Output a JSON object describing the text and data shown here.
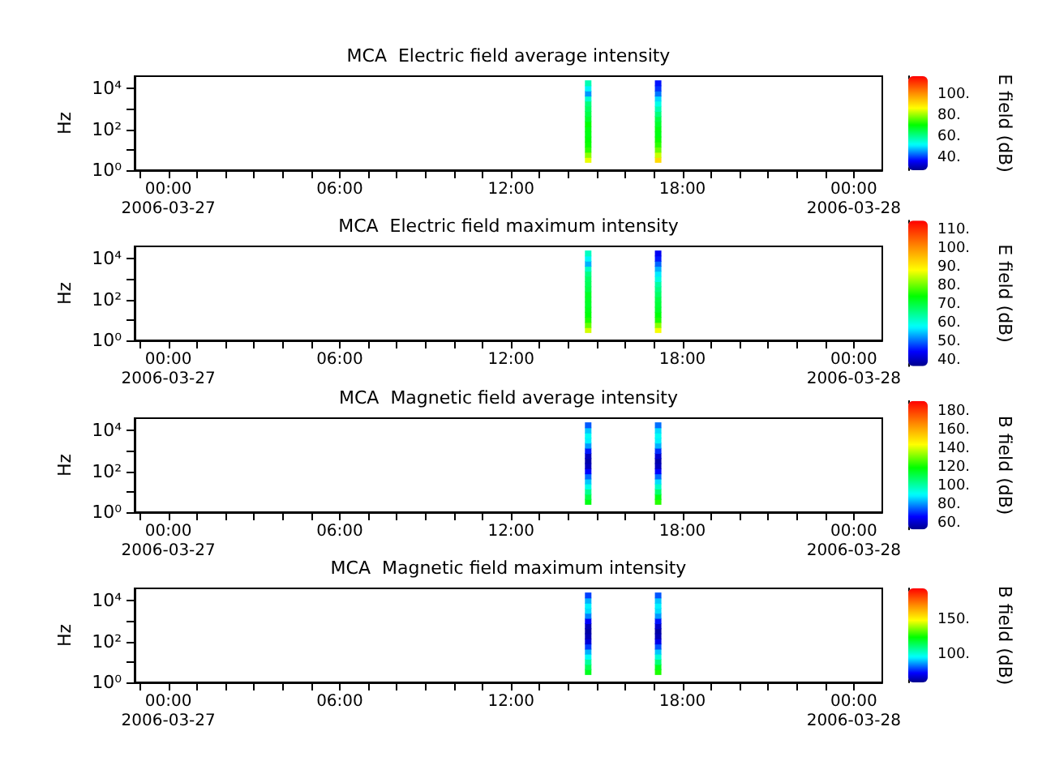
{
  "chart_data": [
    {
      "type": "scatter",
      "title": "MCA  Electric field average intensity",
      "ylabel": "Hz",
      "clabel": "E field (dB)",
      "marker": "square",
      "log": "y",
      "x": [
        "2006-03-27T14:42",
        "2006-03-27T14:42",
        "2006-03-27T14:42",
        "2006-03-27T14:42",
        "2006-03-27T14:42",
        "2006-03-27T14:42",
        "2006-03-27T14:42",
        "2006-03-27T14:42",
        "2006-03-27T14:42",
        "2006-03-27T14:42",
        "2006-03-27T14:42",
        "2006-03-27T14:42",
        "2006-03-27T14:42",
        "2006-03-27T14:42",
        "2006-03-27T14:42",
        "2006-03-27T14:42",
        "2006-03-27T17:09",
        "2006-03-27T17:09",
        "2006-03-27T17:09",
        "2006-03-27T17:09",
        "2006-03-27T17:09",
        "2006-03-27T17:09",
        "2006-03-27T17:09",
        "2006-03-27T17:09",
        "2006-03-27T17:09",
        "2006-03-27T17:09",
        "2006-03-27T17:09",
        "2006-03-27T17:09",
        "2006-03-27T17:09",
        "2006-03-27T17:09",
        "2006-03-27T17:09",
        "2006-03-27T17:09"
      ],
      "values": [
        3.2,
        5.6,
        10,
        18,
        32,
        56,
        100,
        180,
        320,
        560,
        1000,
        1800,
        3200,
        5600,
        10000,
        18000,
        3.2,
        5.6,
        10,
        18,
        32,
        56,
        100,
        180,
        320,
        560,
        1000,
        1800,
        3200,
        5600,
        10000,
        18000
      ],
      "cvalues": [
        86,
        80,
        74,
        72,
        71,
        70,
        70,
        71,
        68,
        66,
        64,
        62,
        56,
        46,
        52,
        58,
        92,
        84,
        78,
        74,
        72,
        70,
        70,
        68,
        66,
        62,
        58,
        54,
        50,
        44,
        40,
        38
      ],
      "xlim": [
        "2006-03-26T22:49",
        "2006-03-28T01:00"
      ],
      "xticks": [
        {
          "value": "2006-03-26T23:00",
          "label": null
        },
        {
          "value": "2006-03-27T00:00",
          "label": "00:00\n2006-03-27"
        },
        {
          "value": "2006-03-27T01:00",
          "label": null
        },
        {
          "value": "2006-03-27T02:00",
          "label": null
        },
        {
          "value": "2006-03-27T03:00",
          "label": null
        },
        {
          "value": "2006-03-27T04:00",
          "label": null
        },
        {
          "value": "2006-03-27T05:00",
          "label": null
        },
        {
          "value": "2006-03-27T06:00",
          "label": "06:00"
        },
        {
          "value": "2006-03-27T07:00",
          "label": null
        },
        {
          "value": "2006-03-27T08:00",
          "label": null
        },
        {
          "value": "2006-03-27T09:00",
          "label": null
        },
        {
          "value": "2006-03-27T10:00",
          "label": null
        },
        {
          "value": "2006-03-27T11:00",
          "label": null
        },
        {
          "value": "2006-03-27T12:00",
          "label": "12:00"
        },
        {
          "value": "2006-03-27T13:00",
          "label": null
        },
        {
          "value": "2006-03-27T14:00",
          "label": null
        },
        {
          "value": "2006-03-27T15:00",
          "label": null
        },
        {
          "value": "2006-03-27T16:00",
          "label": null
        },
        {
          "value": "2006-03-27T17:00",
          "label": null
        },
        {
          "value": "2006-03-27T18:00",
          "label": "18:00"
        },
        {
          "value": "2006-03-27T19:00",
          "label": null
        },
        {
          "value": "2006-03-27T20:00",
          "label": null
        },
        {
          "value": "2006-03-27T21:00",
          "label": null
        },
        {
          "value": "2006-03-27T22:00",
          "label": null
        },
        {
          "value": "2006-03-27T23:00",
          "label": null
        },
        {
          "value": "2006-03-28T00:00",
          "label": "00:00\n2006-03-28"
        }
      ],
      "ylim": [
        1,
        40000
      ],
      "yticks": [
        {
          "value": 1,
          "label": "10⁰"
        },
        {
          "value": 10,
          "label": null
        },
        {
          "value": 100,
          "label": "10²"
        },
        {
          "value": 1000,
          "label": null
        },
        {
          "value": 10000,
          "label": "10⁴"
        }
      ],
      "clim": [
        28,
        118
      ],
      "cticks": [
        {
          "value": 30,
          "label": null
        },
        {
          "value": 40,
          "label": "40."
        },
        {
          "value": 50,
          "label": null
        },
        {
          "value": 60,
          "label": "60."
        },
        {
          "value": 70,
          "label": null
        },
        {
          "value": 80,
          "label": "80."
        },
        {
          "value": 90,
          "label": null
        },
        {
          "value": 100,
          "label": "100."
        },
        {
          "value": 110,
          "label": null
        }
      ]
    },
    {
      "type": "scatter",
      "title": "MCA  Electric field maximum intensity",
      "ylabel": "Hz",
      "clabel": "E field (dB)",
      "marker": "square",
      "log": "y",
      "x": [
        "2006-03-27T14:42",
        "2006-03-27T14:42",
        "2006-03-27T14:42",
        "2006-03-27T14:42",
        "2006-03-27T14:42",
        "2006-03-27T14:42",
        "2006-03-27T14:42",
        "2006-03-27T14:42",
        "2006-03-27T14:42",
        "2006-03-27T14:42",
        "2006-03-27T14:42",
        "2006-03-27T14:42",
        "2006-03-27T14:42",
        "2006-03-27T14:42",
        "2006-03-27T14:42",
        "2006-03-27T14:42",
        "2006-03-27T17:09",
        "2006-03-27T17:09",
        "2006-03-27T17:09",
        "2006-03-27T17:09",
        "2006-03-27T17:09",
        "2006-03-27T17:09",
        "2006-03-27T17:09",
        "2006-03-27T17:09",
        "2006-03-27T17:09",
        "2006-03-27T17:09",
        "2006-03-27T17:09",
        "2006-03-27T17:09",
        "2006-03-27T17:09",
        "2006-03-27T17:09",
        "2006-03-27T17:09",
        "2006-03-27T17:09"
      ],
      "values": [
        3.2,
        5.6,
        10,
        18,
        32,
        56,
        100,
        180,
        320,
        560,
        1000,
        1800,
        3200,
        5600,
        10000,
        18000,
        3.2,
        5.6,
        10,
        18,
        32,
        56,
        100,
        180,
        320,
        560,
        1000,
        1800,
        3200,
        5600,
        10000,
        18000
      ],
      "cvalues": [
        86,
        80,
        76,
        74,
        73,
        72,
        72,
        72,
        70,
        69,
        68,
        66,
        62,
        54,
        58,
        62,
        88,
        82,
        76,
        74,
        72,
        71,
        70,
        68,
        66,
        64,
        60,
        57,
        54,
        50,
        46,
        44
      ],
      "xlim": [
        "2006-03-26T22:49",
        "2006-03-28T01:00"
      ],
      "xticks": [
        {
          "value": "2006-03-26T23:00",
          "label": null
        },
        {
          "value": "2006-03-27T00:00",
          "label": "00:00\n2006-03-27"
        },
        {
          "value": "2006-03-27T01:00",
          "label": null
        },
        {
          "value": "2006-03-27T02:00",
          "label": null
        },
        {
          "value": "2006-03-27T03:00",
          "label": null
        },
        {
          "value": "2006-03-27T04:00",
          "label": null
        },
        {
          "value": "2006-03-27T05:00",
          "label": null
        },
        {
          "value": "2006-03-27T06:00",
          "label": "06:00"
        },
        {
          "value": "2006-03-27T07:00",
          "label": null
        },
        {
          "value": "2006-03-27T08:00",
          "label": null
        },
        {
          "value": "2006-03-27T09:00",
          "label": null
        },
        {
          "value": "2006-03-27T10:00",
          "label": null
        },
        {
          "value": "2006-03-27T11:00",
          "label": null
        },
        {
          "value": "2006-03-27T12:00",
          "label": "12:00"
        },
        {
          "value": "2006-03-27T13:00",
          "label": null
        },
        {
          "value": "2006-03-27T14:00",
          "label": null
        },
        {
          "value": "2006-03-27T15:00",
          "label": null
        },
        {
          "value": "2006-03-27T16:00",
          "label": null
        },
        {
          "value": "2006-03-27T17:00",
          "label": null
        },
        {
          "value": "2006-03-27T18:00",
          "label": "18:00"
        },
        {
          "value": "2006-03-27T19:00",
          "label": null
        },
        {
          "value": "2006-03-27T20:00",
          "label": null
        },
        {
          "value": "2006-03-27T21:00",
          "label": null
        },
        {
          "value": "2006-03-27T22:00",
          "label": null
        },
        {
          "value": "2006-03-27T23:00",
          "label": null
        },
        {
          "value": "2006-03-28T00:00",
          "label": "00:00\n2006-03-28"
        }
      ],
      "ylim": [
        1,
        40000
      ],
      "yticks": [
        {
          "value": 1,
          "label": "10⁰"
        },
        {
          "value": 10,
          "label": null
        },
        {
          "value": 100,
          "label": "10²"
        },
        {
          "value": 1000,
          "label": null
        },
        {
          "value": 10000,
          "label": "10⁴"
        }
      ],
      "clim": [
        37,
        115
      ],
      "cticks": [
        {
          "value": 38,
          "label": null
        },
        {
          "value": 40,
          "label": "40."
        },
        {
          "value": 42,
          "label": null
        },
        {
          "value": 44,
          "label": null
        },
        {
          "value": 46,
          "label": null
        },
        {
          "value": 48,
          "label": null
        },
        {
          "value": 50,
          "label": "50."
        },
        {
          "value": 52,
          "label": null
        },
        {
          "value": 54,
          "label": null
        },
        {
          "value": 56,
          "label": null
        },
        {
          "value": 58,
          "label": null
        },
        {
          "value": 60,
          "label": "60."
        },
        {
          "value": 62,
          "label": null
        },
        {
          "value": 64,
          "label": null
        },
        {
          "value": 66,
          "label": null
        },
        {
          "value": 68,
          "label": null
        },
        {
          "value": 70,
          "label": "70."
        },
        {
          "value": 72,
          "label": null
        },
        {
          "value": 74,
          "label": null
        },
        {
          "value": 76,
          "label": null
        },
        {
          "value": 78,
          "label": null
        },
        {
          "value": 80,
          "label": "80."
        },
        {
          "value": 82,
          "label": null
        },
        {
          "value": 84,
          "label": null
        },
        {
          "value": 86,
          "label": null
        },
        {
          "value": 88,
          "label": null
        },
        {
          "value": 90,
          "label": "90."
        },
        {
          "value": 92,
          "label": null
        },
        {
          "value": 94,
          "label": null
        },
        {
          "value": 96,
          "label": null
        },
        {
          "value": 98,
          "label": null
        },
        {
          "value": 100,
          "label": "100."
        },
        {
          "value": 102,
          "label": null
        },
        {
          "value": 104,
          "label": null
        },
        {
          "value": 106,
          "label": null
        },
        {
          "value": 108,
          "label": null
        },
        {
          "value": 110,
          "label": "110."
        },
        {
          "value": 112,
          "label": null
        },
        {
          "value": 114,
          "label": null
        }
      ]
    },
    {
      "type": "scatter",
      "title": "MCA  Magnetic field average intensity",
      "ylabel": "Hz",
      "clabel": "B field (dB)",
      "marker": "square",
      "log": "y",
      "x": [
        "2006-03-27T14:42",
        "2006-03-27T14:42",
        "2006-03-27T14:42",
        "2006-03-27T14:42",
        "2006-03-27T14:42",
        "2006-03-27T14:42",
        "2006-03-27T14:42",
        "2006-03-27T14:42",
        "2006-03-27T14:42",
        "2006-03-27T14:42",
        "2006-03-27T14:42",
        "2006-03-27T14:42",
        "2006-03-27T14:42",
        "2006-03-27T14:42",
        "2006-03-27T14:42",
        "2006-03-27T14:42",
        "2006-03-27T17:09",
        "2006-03-27T17:09",
        "2006-03-27T17:09",
        "2006-03-27T17:09",
        "2006-03-27T17:09",
        "2006-03-27T17:09",
        "2006-03-27T17:09",
        "2006-03-27T17:09",
        "2006-03-27T17:09",
        "2006-03-27T17:09",
        "2006-03-27T17:09",
        "2006-03-27T17:09",
        "2006-03-27T17:09",
        "2006-03-27T17:09",
        "2006-03-27T17:09",
        "2006-03-27T17:09"
      ],
      "values": [
        3.2,
        5.6,
        10,
        18,
        32,
        56,
        100,
        180,
        320,
        560,
        1000,
        1800,
        3200,
        5600,
        10000,
        18000,
        3.2,
        5.6,
        10,
        18,
        32,
        56,
        100,
        180,
        320,
        560,
        1000,
        1800,
        3200,
        5600,
        10000,
        18000
      ],
      "cvalues": [
        118,
        112,
        104,
        94,
        86,
        78,
        68,
        60,
        58,
        60,
        70,
        82,
        90,
        92,
        86,
        76,
        124,
        118,
        108,
        98,
        88,
        78,
        68,
        60,
        58,
        62,
        72,
        84,
        90,
        92,
        88,
        78
      ],
      "xlim": [
        "2006-03-26T22:49",
        "2006-03-28T01:00"
      ],
      "xticks": [
        {
          "value": "2006-03-26T23:00",
          "label": null
        },
        {
          "value": "2006-03-27T00:00",
          "label": "00:00\n2006-03-27"
        },
        {
          "value": "2006-03-27T01:00",
          "label": null
        },
        {
          "value": "2006-03-27T02:00",
          "label": null
        },
        {
          "value": "2006-03-27T03:00",
          "label": null
        },
        {
          "value": "2006-03-27T04:00",
          "label": null
        },
        {
          "value": "2006-03-27T05:00",
          "label": null
        },
        {
          "value": "2006-03-27T06:00",
          "label": "06:00"
        },
        {
          "value": "2006-03-27T07:00",
          "label": null
        },
        {
          "value": "2006-03-27T08:00",
          "label": null
        },
        {
          "value": "2006-03-27T09:00",
          "label": null
        },
        {
          "value": "2006-03-27T10:00",
          "label": null
        },
        {
          "value": "2006-03-27T11:00",
          "label": null
        },
        {
          "value": "2006-03-27T12:00",
          "label": "12:00"
        },
        {
          "value": "2006-03-27T13:00",
          "label": null
        },
        {
          "value": "2006-03-27T14:00",
          "label": null
        },
        {
          "value": "2006-03-27T15:00",
          "label": null
        },
        {
          "value": "2006-03-27T16:00",
          "label": null
        },
        {
          "value": "2006-03-27T17:00",
          "label": null
        },
        {
          "value": "2006-03-27T18:00",
          "label": "18:00"
        },
        {
          "value": "2006-03-27T19:00",
          "label": null
        },
        {
          "value": "2006-03-27T20:00",
          "label": null
        },
        {
          "value": "2006-03-27T21:00",
          "label": null
        },
        {
          "value": "2006-03-27T22:00",
          "label": null
        },
        {
          "value": "2006-03-27T23:00",
          "label": null
        },
        {
          "value": "2006-03-28T00:00",
          "label": "00:00\n2006-03-28"
        }
      ],
      "ylim": [
        1,
        40000
      ],
      "yticks": [
        {
          "value": 1,
          "label": "10⁰"
        },
        {
          "value": 10,
          "label": null
        },
        {
          "value": 100,
          "label": "10²"
        },
        {
          "value": 1000,
          "label": null
        },
        {
          "value": 10000,
          "label": "10⁴"
        }
      ],
      "clim": [
        54,
        192
      ],
      "cticks": [
        {
          "value": 60,
          "label": "60."
        },
        {
          "value": 70,
          "label": null
        },
        {
          "value": 80,
          "label": "80."
        },
        {
          "value": 90,
          "label": null
        },
        {
          "value": 100,
          "label": "100."
        },
        {
          "value": 110,
          "label": null
        },
        {
          "value": 120,
          "label": "120."
        },
        {
          "value": 130,
          "label": null
        },
        {
          "value": 140,
          "label": "140."
        },
        {
          "value": 150,
          "label": null
        },
        {
          "value": 160,
          "label": "160."
        },
        {
          "value": 170,
          "label": null
        },
        {
          "value": 180,
          "label": "180."
        },
        {
          "value": 190,
          "label": null
        }
      ]
    },
    {
      "type": "scatter",
      "title": "MCA  Magnetic field maximum intensity",
      "ylabel": "Hz",
      "clabel": "B field (dB)",
      "marker": "square",
      "log": "y",
      "x": [
        "2006-03-27T14:42",
        "2006-03-27T14:42",
        "2006-03-27T14:42",
        "2006-03-27T14:42",
        "2006-03-27T14:42",
        "2006-03-27T14:42",
        "2006-03-27T14:42",
        "2006-03-27T14:42",
        "2006-03-27T14:42",
        "2006-03-27T14:42",
        "2006-03-27T14:42",
        "2006-03-27T14:42",
        "2006-03-27T14:42",
        "2006-03-27T14:42",
        "2006-03-27T14:42",
        "2006-03-27T14:42",
        "2006-03-27T17:09",
        "2006-03-27T17:09",
        "2006-03-27T17:09",
        "2006-03-27T17:09",
        "2006-03-27T17:09",
        "2006-03-27T17:09",
        "2006-03-27T17:09",
        "2006-03-27T17:09",
        "2006-03-27T17:09",
        "2006-03-27T17:09",
        "2006-03-27T17:09",
        "2006-03-27T17:09",
        "2006-03-27T17:09",
        "2006-03-27T17:09",
        "2006-03-27T17:09",
        "2006-03-27T17:09"
      ],
      "values": [
        3.2,
        5.6,
        10,
        18,
        32,
        56,
        100,
        180,
        320,
        560,
        1000,
        1800,
        3200,
        5600,
        10000,
        18000,
        3.2,
        5.6,
        10,
        18,
        32,
        56,
        100,
        180,
        320,
        560,
        1000,
        1800,
        3200,
        5600,
        10000,
        18000
      ],
      "cvalues": [
        122,
        116,
        108,
        98,
        90,
        80,
        70,
        66,
        64,
        66,
        74,
        86,
        94,
        96,
        90,
        80,
        128,
        122,
        112,
        102,
        92,
        82,
        72,
        66,
        64,
        68,
        76,
        88,
        94,
        96,
        92,
        82
      ],
      "xlim": [
        "2006-03-26T22:49",
        "2006-03-28T01:00"
      ],
      "xticks": [
        {
          "value": "2006-03-26T23:00",
          "label": null
        },
        {
          "value": "2006-03-27T00:00",
          "label": "00:00\n2006-03-27"
        },
        {
          "value": "2006-03-27T01:00",
          "label": null
        },
        {
          "value": "2006-03-27T02:00",
          "label": null
        },
        {
          "value": "2006-03-27T03:00",
          "label": null
        },
        {
          "value": "2006-03-27T04:00",
          "label": null
        },
        {
          "value": "2006-03-27T05:00",
          "label": null
        },
        {
          "value": "2006-03-27T06:00",
          "label": "06:00"
        },
        {
          "value": "2006-03-27T07:00",
          "label": null
        },
        {
          "value": "2006-03-27T08:00",
          "label": null
        },
        {
          "value": "2006-03-27T09:00",
          "label": null
        },
        {
          "value": "2006-03-27T10:00",
          "label": null
        },
        {
          "value": "2006-03-27T11:00",
          "label": null
        },
        {
          "value": "2006-03-27T12:00",
          "label": "12:00"
        },
        {
          "value": "2006-03-27T13:00",
          "label": null
        },
        {
          "value": "2006-03-27T14:00",
          "label": null
        },
        {
          "value": "2006-03-27T15:00",
          "label": null
        },
        {
          "value": "2006-03-27T16:00",
          "label": null
        },
        {
          "value": "2006-03-27T17:00",
          "label": null
        },
        {
          "value": "2006-03-27T18:00",
          "label": "18:00"
        },
        {
          "value": "2006-03-27T19:00",
          "label": null
        },
        {
          "value": "2006-03-27T20:00",
          "label": null
        },
        {
          "value": "2006-03-27T21:00",
          "label": null
        },
        {
          "value": "2006-03-27T22:00",
          "label": null
        },
        {
          "value": "2006-03-27T23:00",
          "label": null
        },
        {
          "value": "2006-03-28T00:00",
          "label": "00:00\n2006-03-28"
        }
      ],
      "ylim": [
        1,
        40000
      ],
      "yticks": [
        {
          "value": 1,
          "label": "10⁰"
        },
        {
          "value": 10,
          "label": null
        },
        {
          "value": 100,
          "label": "10²"
        },
        {
          "value": 1000,
          "label": null
        },
        {
          "value": 10000,
          "label": "10⁴"
        }
      ],
      "clim": [
        61,
        195
      ],
      "cticks": [
        {
          "value": 70,
          "label": null
        },
        {
          "value": 80,
          "label": null
        },
        {
          "value": 90,
          "label": null
        },
        {
          "value": 100,
          "label": "100."
        },
        {
          "value": 110,
          "label": null
        },
        {
          "value": 120,
          "label": null
        },
        {
          "value": 130,
          "label": null
        },
        {
          "value": 140,
          "label": null
        },
        {
          "value": 150,
          "label": "150."
        },
        {
          "value": 160,
          "label": null
        },
        {
          "value": 170,
          "label": null
        },
        {
          "value": 180,
          "label": null
        },
        {
          "value": 190,
          "label": null
        }
      ]
    }
  ]
}
